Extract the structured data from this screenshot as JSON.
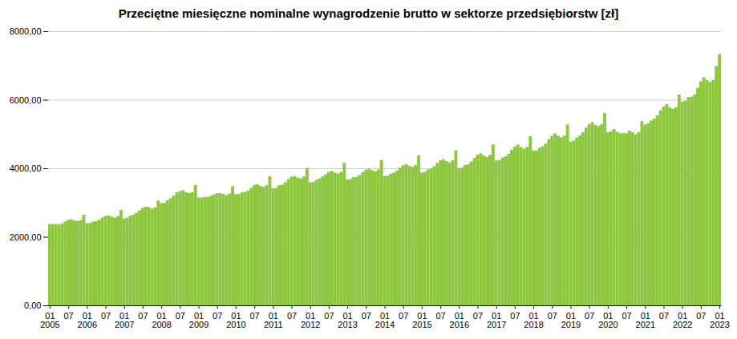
{
  "chart_data": {
    "type": "bar",
    "title": "Przeciętne miesięczne nominalne wynagrodzenie brutto w sektorze przedsiębiorstw [zł]",
    "color": "#8dc63f",
    "grid": true,
    "ylim": [
      0,
      8000
    ],
    "yticks": [
      {
        "value": 0,
        "label": "0,00"
      },
      {
        "value": 2000,
        "label": "2000,00"
      },
      {
        "value": 4000,
        "label": "4000,00"
      },
      {
        "value": 6000,
        "label": "6000,00"
      },
      {
        "value": 8000,
        "label": "8000,00"
      }
    ],
    "categories": [
      "01\n2005",
      null,
      null,
      null,
      null,
      null,
      "07",
      null,
      null,
      null,
      null,
      null,
      "01\n2006",
      null,
      null,
      null,
      null,
      null,
      "07",
      null,
      null,
      null,
      null,
      null,
      "01\n2007",
      null,
      null,
      null,
      null,
      null,
      "07",
      null,
      null,
      null,
      null,
      null,
      "01\n2008",
      null,
      null,
      null,
      null,
      null,
      "07",
      null,
      null,
      null,
      null,
      null,
      "01\n2009",
      null,
      null,
      null,
      null,
      null,
      "07",
      null,
      null,
      null,
      null,
      null,
      "01\n2010",
      null,
      null,
      null,
      null,
      null,
      "07",
      null,
      null,
      null,
      null,
      null,
      "01\n2011",
      null,
      null,
      null,
      null,
      null,
      "07",
      null,
      null,
      null,
      null,
      null,
      "01\n2012",
      null,
      null,
      null,
      null,
      null,
      "07",
      null,
      null,
      null,
      null,
      null,
      "01\n2013",
      null,
      null,
      null,
      null,
      null,
      "07",
      null,
      null,
      null,
      null,
      null,
      "01\n2014",
      null,
      null,
      null,
      null,
      null,
      "07",
      null,
      null,
      null,
      null,
      null,
      "01\n2015",
      null,
      null,
      null,
      null,
      null,
      "07",
      null,
      null,
      null,
      null,
      null,
      "01\n2016",
      null,
      null,
      null,
      null,
      null,
      "07",
      null,
      null,
      null,
      null,
      null,
      "01\n2017",
      null,
      null,
      null,
      null,
      null,
      "07",
      null,
      null,
      null,
      null,
      null,
      "01\n2018",
      null,
      null,
      null,
      null,
      null,
      "07",
      null,
      null,
      null,
      null,
      null,
      "01\n2019",
      null,
      null,
      null,
      null,
      null,
      "07",
      null,
      null,
      null,
      null,
      null,
      "01\n2020",
      null,
      null,
      null,
      null,
      null,
      "07",
      null,
      null,
      null,
      null,
      null,
      "01\n2021",
      null,
      null,
      null,
      null,
      null,
      "07",
      null,
      null,
      null,
      null,
      null,
      "01\n2022",
      null,
      null,
      null,
      null,
      null,
      "07",
      null,
      null,
      null,
      null,
      null,
      "01\n2023"
    ],
    "values": [
      2372.75,
      2369.19,
      2373.33,
      2358.61,
      2389.12,
      2447.05,
      2498.52,
      2509.11,
      2476.04,
      2463.29,
      2491.27,
      2643.71,
      2396.78,
      2406.51,
      2445.96,
      2455.04,
      2498.29,
      2564.01,
      2611.1,
      2621.24,
      2587.0,
      2561.15,
      2601.26,
      2784.84,
      2533.87,
      2561.52,
      2620.93,
      2647.4,
      2702.96,
      2775.62,
      2847.31,
      2876.93,
      2863.69,
      2822.73,
      2857.88,
      3057.6,
      2979.11,
      2990.64,
      3070.96,
      3128.31,
      3203.28,
      3295.28,
      3335.62,
      3359.37,
      3302.52,
      3279.89,
      3295.47,
      3516.8,
      3146.5,
      3145.5,
      3166.61,
      3166.23,
      3197.67,
      3239.72,
      3272.22,
      3276.43,
      3251.66,
      3217.4,
      3259.75,
      3477.34,
      3241.42,
      3253.44,
      3300.69,
      3308.88,
      3347.84,
      3432.55,
      3511.29,
      3536.13,
      3483.83,
      3463.27,
      3509.31,
      3765.77,
      3413.37,
      3430.19,
      3503.67,
      3522.58,
      3594.6,
      3688.25,
      3755.08,
      3774.58,
      3727.87,
      3705.59,
      3761.77,
      4011.38,
      3595.22,
      3601.01,
      3661.58,
      3700.88,
      3756.38,
      3823.66,
      3890.84,
      3919.29,
      3875.49,
      3848.17,
      3896.9,
      4159.56,
      3675.77,
      3680.78,
      3741.11,
      3753.69,
      3803.84,
      3888.73,
      3957.39,
      3987.78,
      3941.7,
      3912.84,
      3964.92,
      4243.83,
      3771.32,
      3786.28,
      3840.64,
      3875.52,
      3935.98,
      4018.75,
      4089.94,
      4120.55,
      4070.92,
      4037.74,
      4091.77,
      4373.97,
      3877.36,
      3895.26,
      3966.6,
      3994.88,
      4062.79,
      4157.42,
      4231.31,
      4261.27,
      4211.05,
      4171.44,
      4232.04,
      4524.6,
      4002.57,
      4020.78,
      4093.32,
      4124.68,
      4196.6,
      4302.66,
      4394.37,
      4435.52,
      4371.63,
      4329.68,
      4389.69,
      4694.31,
      4227.4,
      4241.31,
      4312.12,
      4349.98,
      4419.55,
      4537.23,
      4632.7,
      4691.89,
      4618.38,
      4575.36,
      4624.88,
      4934.38,
      4516.82,
      4519.64,
      4603.3,
      4639.29,
      4719.39,
      4851.17,
      4951.44,
      5018.89,
      4950.13,
      4903.19,
      4961.37,
      5276.07,
      4781.19,
      4806.09,
      4900.11,
      4958.48,
      5053.6,
      5183.49,
      5285.67,
      5348.86,
      5266.38,
      5230.65,
      5287.33,
      5616.43,
      5054.5,
      5083.94,
      5143.47,
      5063.27,
      5024.02,
      5024.4,
      5024.52,
      5100.19,
      5056.52,
      4992.19,
      5056.06,
      5374.68,
      5278.02,
      5315.07,
      5397.26,
      5451.64,
      5544.21,
      5690.27,
      5798.37,
      5875.32,
      5776.44,
      5729.4,
      5776.19,
      6149.28,
      5944.29,
      5966.98,
      6076.26,
      6087.89,
      6156.08,
      6343.27,
      6539.37,
      6655.89,
      6570.64,
      6520.45,
      6580.17,
      6985.32,
      7329.0
    ]
  }
}
